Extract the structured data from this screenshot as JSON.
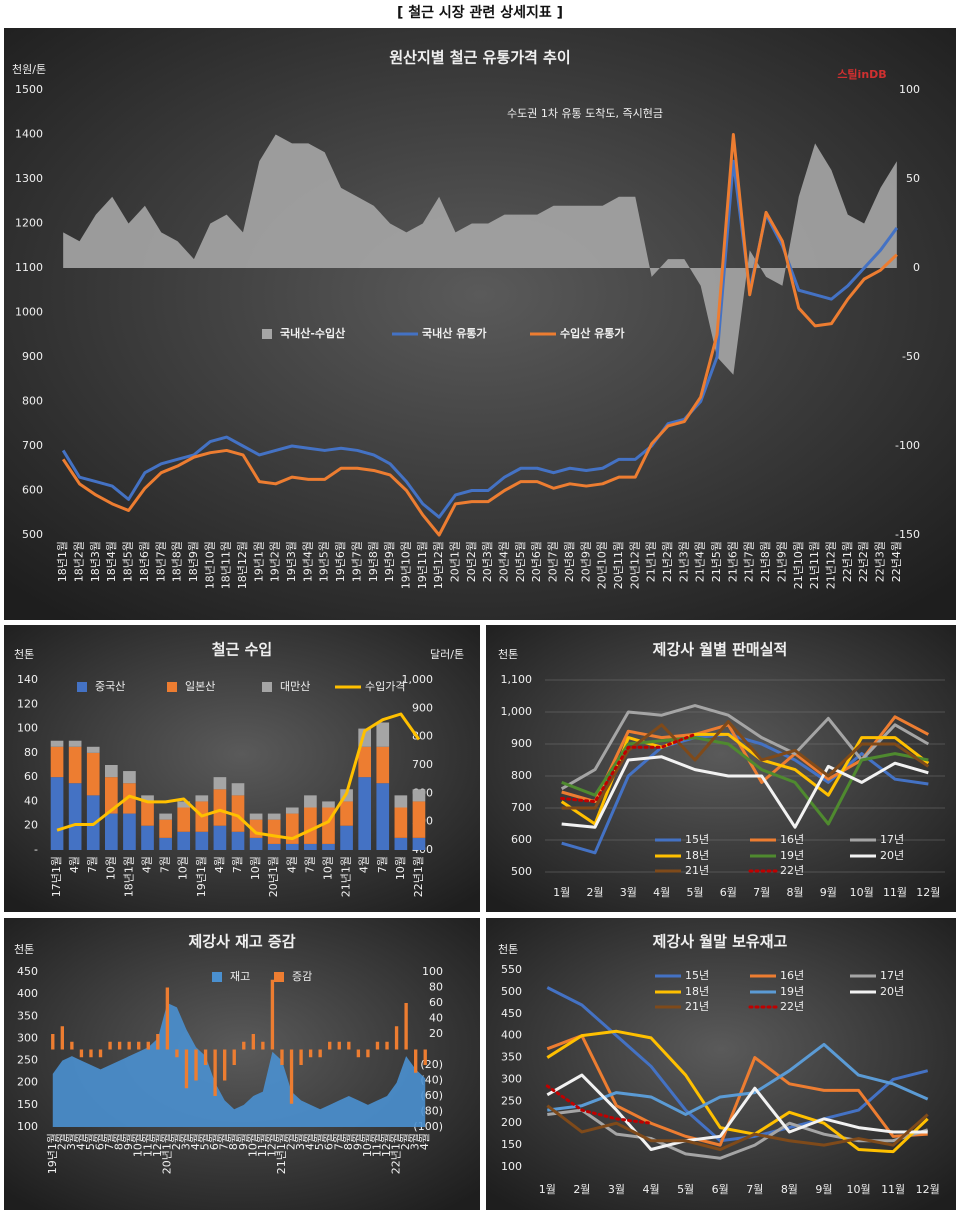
{
  "page_title": "[ 철근 시장 관련 상세지표 ]",
  "chart_data": [
    {
      "type": "combo",
      "title": "원산지별 철근 유통가격 추이",
      "subtitle": "수도권 1차 유통 도착도, 즉시현금",
      "logo": "스틸inDB",
      "ylabel": "천원/톤",
      "categories": [
        "18년1월",
        "18년2월",
        "18년3월",
        "18년4월",
        "18년5월",
        "18년6월",
        "18년7월",
        "18년8월",
        "18년9월",
        "18년10월",
        "18년11월",
        "18년12월",
        "19년1월",
        "19년2월",
        "19년3월",
        "19년4월",
        "19년5월",
        "19년6월",
        "19년7월",
        "19년8월",
        "19년9월",
        "19년10월",
        "19년11월",
        "19년12월",
        "20년1월",
        "20년2월",
        "20년3월",
        "20년4월",
        "20년5월",
        "20년6월",
        "20년7월",
        "20년8월",
        "20년9월",
        "20년10월",
        "20년11월",
        "20년12월",
        "21년1월",
        "21년2월",
        "21년3월",
        "21년4월",
        "21년5월",
        "21년6월",
        "21년7월",
        "21년8월",
        "21년9월",
        "21년10월",
        "21년11월",
        "21년12월",
        "22년1월",
        "22년2월",
        "22년3월",
        "22년4월"
      ],
      "series": [
        {
          "name": "국내산-수입산",
          "type": "area",
          "axis": "y2",
          "color": "#a6a6a6",
          "values": [
            20,
            15,
            30,
            40,
            25,
            35,
            20,
            15,
            5,
            25,
            30,
            20,
            60,
            75,
            70,
            70,
            65,
            45,
            40,
            35,
            25,
            20,
            25,
            40,
            20,
            25,
            25,
            30,
            30,
            30,
            35,
            35,
            35,
            35,
            40,
            40,
            -5,
            5,
            5,
            -10,
            -50,
            -60,
            10,
            -5,
            -10,
            40,
            70,
            55,
            30,
            25,
            45,
            60
          ]
        },
        {
          "name": "국내산 유통가",
          "type": "line",
          "color": "#4472c4",
          "values": [
            690,
            630,
            620,
            610,
            580,
            640,
            660,
            670,
            680,
            710,
            720,
            700,
            680,
            690,
            700,
            695,
            690,
            695,
            690,
            680,
            660,
            620,
            570,
            540,
            590,
            600,
            600,
            630,
            650,
            650,
            640,
            650,
            645,
            650,
            670,
            670,
            700,
            750,
            760,
            800,
            900,
            1340,
            1050,
            1220,
            1150,
            1050,
            1040,
            1030,
            1060,
            1100,
            1140,
            1190
          ]
        },
        {
          "name": "수입산 유통가",
          "type": "line",
          "color": "#ed7d31",
          "values": [
            670,
            615,
            590,
            570,
            555,
            605,
            640,
            655,
            675,
            685,
            690,
            680,
            620,
            615,
            630,
            625,
            625,
            650,
            650,
            645,
            635,
            600,
            545,
            500,
            570,
            575,
            575,
            600,
            620,
            620,
            605,
            615,
            610,
            615,
            630,
            630,
            705,
            745,
            755,
            810,
            950,
            1400,
            1040,
            1225,
            1160,
            1010,
            970,
            975,
            1030,
            1075,
            1095,
            1130
          ]
        }
      ],
      "ylim": [
        500,
        1500
      ],
      "yticks": [
        500,
        600,
        700,
        800,
        900,
        1000,
        1100,
        1200,
        1300,
        1400,
        1500
      ],
      "y2lim": [
        -150,
        100
      ],
      "y2ticks": [
        -150,
        -100,
        -50,
        0,
        50,
        100
      ],
      "grid": false
    },
    {
      "type": "combo",
      "title": "철근 수입",
      "ylabel": "천톤",
      "y2label": "달러/톤",
      "stacked": true,
      "categories": [
        "17년1월",
        "4월",
        "7월",
        "10월",
        "18년1월",
        "4월",
        "7월",
        "10월",
        "19년1월",
        "4월",
        "7월",
        "10월",
        "20년1월",
        "4월",
        "7월",
        "10월",
        "21년1월",
        "4월",
        "7월",
        "10월",
        "22년1월"
      ],
      "series": [
        {
          "name": "중국산",
          "type": "bar",
          "color": "#4472c4",
          "values": [
            60,
            55,
            45,
            30,
            30,
            20,
            10,
            15,
            15,
            20,
            15,
            10,
            5,
            5,
            5,
            5,
            20,
            60,
            55,
            10,
            10
          ]
        },
        {
          "name": "일본산",
          "type": "bar",
          "color": "#ed7d31",
          "values": [
            25,
            30,
            35,
            30,
            25,
            20,
            15,
            20,
            25,
            30,
            30,
            15,
            20,
            25,
            30,
            30,
            20,
            25,
            30,
            25,
            30
          ]
        },
        {
          "name": "대만산",
          "type": "bar",
          "color": "#a5a5a5",
          "values": [
            5,
            5,
            5,
            10,
            10,
            5,
            5,
            5,
            5,
            10,
            10,
            5,
            5,
            5,
            10,
            5,
            10,
            15,
            20,
            10,
            10
          ]
        },
        {
          "name": "수입가격",
          "type": "line",
          "axis": "y2",
          "color": "#ffc000",
          "values": [
            470,
            490,
            490,
            540,
            590,
            570,
            570,
            580,
            520,
            540,
            520,
            460,
            450,
            440,
            470,
            500,
            600,
            820,
            860,
            880,
            790
          ]
        }
      ],
      "ylim": [
        0,
        140
      ],
      "yticks": [
        {
          "value": 0,
          "label": "-"
        },
        20,
        40,
        60,
        80,
        100,
        120,
        140
      ],
      "y2lim": [
        400,
        1000
      ],
      "y2ticks": [
        400,
        500,
        600,
        700,
        800,
        900,
        {
          "value": 1000,
          "label": "1,000"
        }
      ],
      "grid": false
    },
    {
      "type": "line",
      "title": "제강사 월별 판매실적",
      "ylabel": "천톤",
      "categories": [
        "1월",
        "2월",
        "3월",
        "4월",
        "5월",
        "6월",
        "7월",
        "8월",
        "9월",
        "10월",
        "11월",
        "12월"
      ],
      "series": [
        {
          "name": "15년",
          "color": "#4472c4",
          "values": [
            590,
            560,
            800,
            890,
            920,
            930,
            900,
            850,
            780,
            870,
            790,
            775
          ]
        },
        {
          "name": "16년",
          "color": "#ed7d31",
          "values": [
            750,
            720,
            940,
            920,
            930,
            960,
            780,
            870,
            790,
            850,
            985,
            930
          ]
        },
        {
          "name": "17년",
          "color": "#a5a5a5",
          "values": [
            760,
            820,
            1000,
            990,
            1020,
            990,
            920,
            870,
            980,
            850,
            960,
            900
          ]
        },
        {
          "name": "18년",
          "color": "#ffc000",
          "values": [
            720,
            650,
            920,
            890,
            930,
            930,
            850,
            820,
            740,
            920,
            920,
            840
          ]
        },
        {
          "name": "19년",
          "color": "#4f8a2f",
          "values": [
            780,
            740,
            900,
            910,
            920,
            900,
            820,
            780,
            650,
            850,
            870,
            850
          ]
        },
        {
          "name": "20년",
          "color": "#f2f2f2",
          "values": [
            650,
            640,
            850,
            860,
            820,
            800,
            800,
            640,
            830,
            780,
            840,
            810
          ]
        },
        {
          "name": "21년",
          "color": "#7f4a1a",
          "values": [
            700,
            700,
            880,
            960,
            850,
            970,
            850,
            880,
            800,
            900,
            900,
            830
          ]
        },
        {
          "name": "22년",
          "color": "#c00000",
          "style": "dotted",
          "values": [
            730,
            720,
            890,
            890,
            930,
            null,
            null,
            null,
            null,
            null,
            null,
            null
          ]
        }
      ],
      "ylim": [
        500,
        1100
      ],
      "yticks": [
        500,
        600,
        700,
        800,
        900,
        {
          "value": 1000,
          "label": "1,000"
        },
        {
          "value": 1100,
          "label": "1,100"
        }
      ],
      "grid": true
    },
    {
      "type": "combo",
      "title": "제강사 재고 증감",
      "ylabel": "천톤",
      "categories": [
        "19년1월",
        "2월",
        "3월",
        "4월",
        "5월",
        "6월",
        "7월",
        "8월",
        "9월",
        "10월",
        "11월",
        "12월",
        "20년1월",
        "2월",
        "3월",
        "4월",
        "5월",
        "6월",
        "7월",
        "8월",
        "9월",
        "10월",
        "11월",
        "12월",
        "21년1월",
        "2월",
        "3월",
        "4월",
        "5월",
        "6월",
        "7월",
        "8월",
        "9월",
        "10월",
        "11월",
        "12월",
        "22년1월",
        "2월",
        "3월",
        "4월"
      ],
      "series": [
        {
          "name": "재고",
          "type": "area",
          "color": "#4a90d0",
          "values": [
            220,
            250,
            260,
            250,
            240,
            230,
            240,
            250,
            260,
            270,
            280,
            300,
            380,
            370,
            320,
            280,
            260,
            200,
            160,
            140,
            150,
            170,
            180,
            270,
            250,
            180,
            160,
            150,
            140,
            150,
            160,
            170,
            160,
            150,
            160,
            170,
            200,
            260,
            230,
            210
          ]
        },
        {
          "name": "증감",
          "type": "bar",
          "axis": "y2",
          "color": "#ed7d31",
          "values": [
            20,
            30,
            10,
            -10,
            -10,
            -10,
            10,
            10,
            10,
            10,
            10,
            20,
            80,
            -10,
            -50,
            -40,
            -20,
            -60,
            -40,
            -20,
            10,
            20,
            10,
            90,
            -20,
            -70,
            -20,
            -10,
            -10,
            10,
            10,
            10,
            -10,
            -10,
            10,
            10,
            30,
            60,
            -30,
            -20
          ]
        }
      ],
      "ylim": [
        100,
        450
      ],
      "yticks": [
        100,
        150,
        200,
        250,
        300,
        350,
        400,
        450
      ],
      "y2lim": [
        -100,
        100
      ],
      "y2ticks": [
        {
          "value": -100,
          "label": "(100)"
        },
        {
          "value": -80,
          "label": "(80)"
        },
        {
          "value": -60,
          "label": "(60)"
        },
        {
          "value": -40,
          "label": "(40)"
        },
        {
          "value": -20,
          "label": "(20)"
        },
        20,
        40,
        60,
        80,
        100
      ],
      "grid": false
    },
    {
      "type": "line",
      "title": "제강사 월말 보유재고",
      "ylabel": "천톤",
      "categories": [
        "1월",
        "2월",
        "3월",
        "4월",
        "5월",
        "6월",
        "7월",
        "8월",
        "9월",
        "10월",
        "11월",
        "12월"
      ],
      "series": [
        {
          "name": "15년",
          "color": "#4472c4",
          "values": [
            510,
            470,
            400,
            330,
            230,
            160,
            170,
            190,
            210,
            230,
            300,
            320
          ]
        },
        {
          "name": "16년",
          "color": "#ed7d31",
          "values": [
            370,
            400,
            240,
            200,
            170,
            150,
            350,
            290,
            275,
            275,
            170,
            175
          ]
        },
        {
          "name": "17년",
          "color": "#a5a5a5",
          "values": [
            220,
            230,
            175,
            165,
            130,
            120,
            150,
            200,
            175,
            160,
            160,
            185
          ]
        },
        {
          "name": "18년",
          "color": "#ffc000",
          "values": [
            350,
            400,
            410,
            395,
            310,
            190,
            175,
            225,
            200,
            140,
            135,
            210
          ]
        },
        {
          "name": "19년",
          "color": "#5b9bd5",
          "values": [
            230,
            240,
            270,
            260,
            220,
            260,
            270,
            320,
            380,
            310,
            290,
            255
          ]
        },
        {
          "name": "20년",
          "color": "#f2f2f2",
          "values": [
            265,
            310,
            230,
            140,
            160,
            170,
            280,
            180,
            210,
            190,
            180,
            180
          ]
        },
        {
          "name": "21년",
          "color": "#7f4a1a",
          "values": [
            240,
            180,
            200,
            160,
            160,
            140,
            175,
            160,
            150,
            165,
            150,
            220
          ]
        },
        {
          "name": "22년",
          "color": "#c00000",
          "style": "dotted",
          "values": [
            285,
            230,
            210,
            200,
            null,
            null,
            null,
            null,
            null,
            null,
            null,
            null
          ]
        }
      ],
      "ylim": [
        100,
        550
      ],
      "yticks": [
        100,
        150,
        200,
        250,
        300,
        350,
        400,
        450,
        500,
        550
      ],
      "grid": false
    }
  ]
}
